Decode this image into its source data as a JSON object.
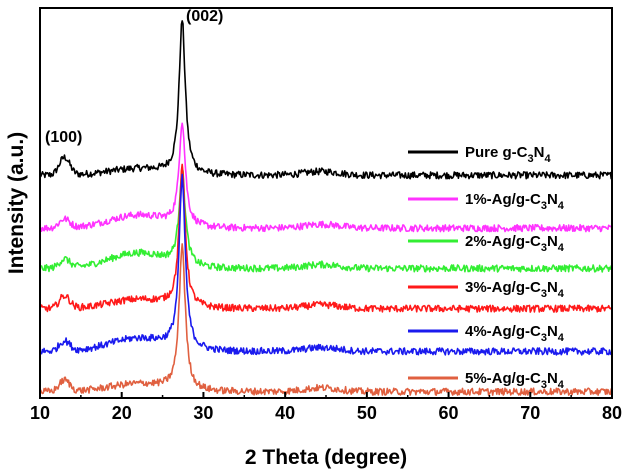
{
  "chart_data": {
    "type": "line",
    "xlabel": "2 Theta (degree)",
    "ylabel": "Intensity (a.u.)",
    "xlim": [
      10,
      80
    ],
    "xticks": [
      "10",
      "20",
      "30",
      "40",
      "50",
      "60",
      "70",
      "80"
    ],
    "y_ticks_shown": false,
    "grid": false,
    "legend_placement": "right",
    "annotations": [
      {
        "text": "(100)",
        "x": 13.0
      },
      {
        "text": "(002)",
        "x": 27.4
      }
    ],
    "series": [
      {
        "name": "Pure g-C3N4",
        "legend_main": "Pure g-C",
        "legend_sub": [
          "3",
          "4"
        ],
        "sub_base": [
          "N",
          ""
        ],
        "color": "#000000",
        "baseline": 1.72,
        "peak_100": 0.14,
        "peak_002": 1.22,
        "hump": 0.05,
        "x": [
          10,
          13,
          20,
          27.4,
          30,
          40,
          50,
          60,
          70,
          80
        ],
        "y": [
          1.72,
          1.86,
          1.75,
          2.94,
          1.8,
          1.74,
          1.73,
          1.72,
          1.72,
          1.72
        ]
      },
      {
        "name": "1%-Ag/g-C3N4",
        "legend_main": "1%-Ag/g-C",
        "legend_sub": [
          "3",
          "4"
        ],
        "sub_base": [
          "N",
          ""
        ],
        "color": "#ff33ff",
        "baseline": 1.3,
        "peak_100": 0.07,
        "peak_002": 0.82,
        "hump": 0.1,
        "x": [
          10,
          13,
          20,
          27.4,
          30,
          40,
          50,
          60,
          70,
          80
        ],
        "y": [
          1.3,
          1.37,
          1.4,
          2.12,
          1.36,
          1.34,
          1.31,
          1.3,
          1.3,
          1.3
        ]
      },
      {
        "name": "2%-Ag/g-C3N4",
        "legend_main": "2%-Ag/g-C",
        "legend_sub": [
          "3",
          "4"
        ],
        "sub_base": [
          "N",
          ""
        ],
        "color": "#33ee33",
        "baseline": 0.98,
        "peak_100": 0.07,
        "peak_002": 0.75,
        "hump": 0.12,
        "x": [
          10,
          13,
          20,
          27.4,
          30,
          40,
          50,
          60,
          70,
          80
        ],
        "y": [
          0.98,
          1.05,
          1.1,
          1.73,
          1.02,
          1.0,
          0.99,
          0.98,
          0.98,
          0.98
        ]
      },
      {
        "name": "3%-Ag/g-C3N4",
        "legend_main": "3%-Ag/g-C",
        "legend_sub": [
          "3",
          "4"
        ],
        "sub_base": [
          "N",
          ""
        ],
        "color": "#ff1a1a",
        "baseline": 0.66,
        "peak_100": 0.1,
        "peak_002": 1.1,
        "hump": 0.07,
        "x": [
          10,
          13,
          20,
          27.4,
          30,
          40,
          50,
          60,
          70,
          80
        ],
        "y": [
          0.66,
          0.76,
          0.72,
          1.76,
          0.7,
          0.68,
          0.67,
          0.66,
          0.66,
          0.66
        ]
      },
      {
        "name": "4%-Ag/g-C3N4",
        "legend_main": "4%-Ag/g-C",
        "legend_sub": [
          "3",
          "4"
        ],
        "sub_base": [
          "N",
          ""
        ],
        "color": "#1a1aee",
        "baseline": 0.32,
        "peak_100": 0.08,
        "peak_002": 1.35,
        "hump": 0.1,
        "x": [
          10,
          13,
          20,
          27.4,
          30,
          40,
          50,
          60,
          70,
          80
        ],
        "y": [
          0.32,
          0.4,
          0.42,
          1.67,
          0.37,
          0.35,
          0.33,
          0.32,
          0.32,
          0.32
        ]
      },
      {
        "name": "5%-Ag/g-C3N4",
        "legend_main": "5%-Ag/g-C",
        "legend_sub": [
          "3",
          "4"
        ],
        "sub_base": [
          "N",
          ""
        ],
        "color": "#e06040",
        "baseline": 0.0,
        "peak_100": 0.09,
        "peak_002": 1.15,
        "hump": 0.06,
        "x": [
          10,
          13,
          20,
          27.4,
          30,
          40,
          50,
          60,
          70,
          80
        ],
        "y": [
          0.0,
          0.09,
          0.06,
          1.15,
          0.05,
          0.04,
          0.02,
          0.01,
          0.0,
          0.0
        ]
      }
    ]
  }
}
